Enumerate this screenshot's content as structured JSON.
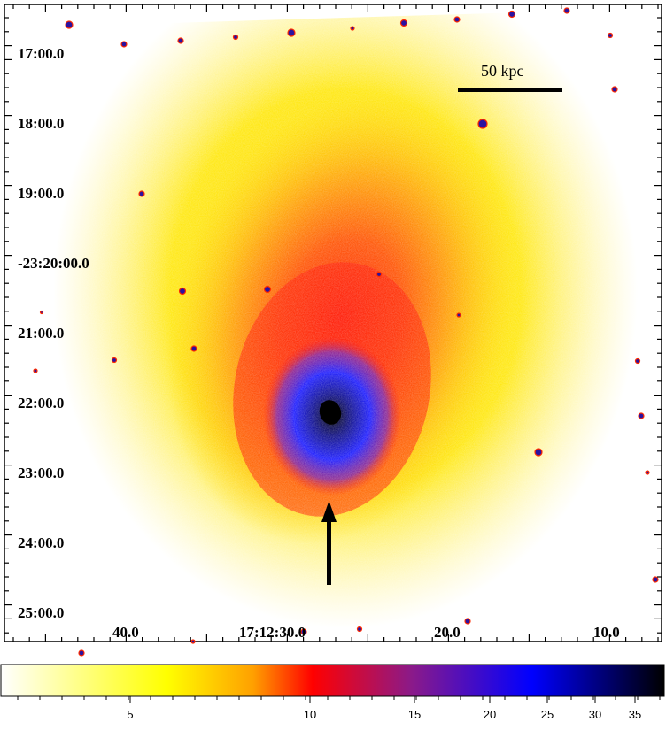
{
  "dec_labels": [
    "17:00.0",
    "18:00.0",
    "19:00.0",
    "-23:20:00.0",
    "21:00.0",
    "22:00.0",
    "23:00.0",
    "24:00.0",
    "25:00.0"
  ],
  "ra_labels": [
    "40.0",
    "17:12:30.0",
    "20.0",
    "10.0"
  ],
  "scale_bar": {
    "label": "50 kpc"
  },
  "colorbar": {
    "tick_labels": [
      "5",
      "10",
      "15",
      "20",
      "25",
      "30",
      "35"
    ],
    "colors": [
      "#ffffff",
      "#ffff00",
      "#ff9900",
      "#ff0000",
      "#8a1a8a",
      "#0000ff",
      "#000000"
    ]
  },
  "arrow": {
    "color": "#000000"
  }
}
